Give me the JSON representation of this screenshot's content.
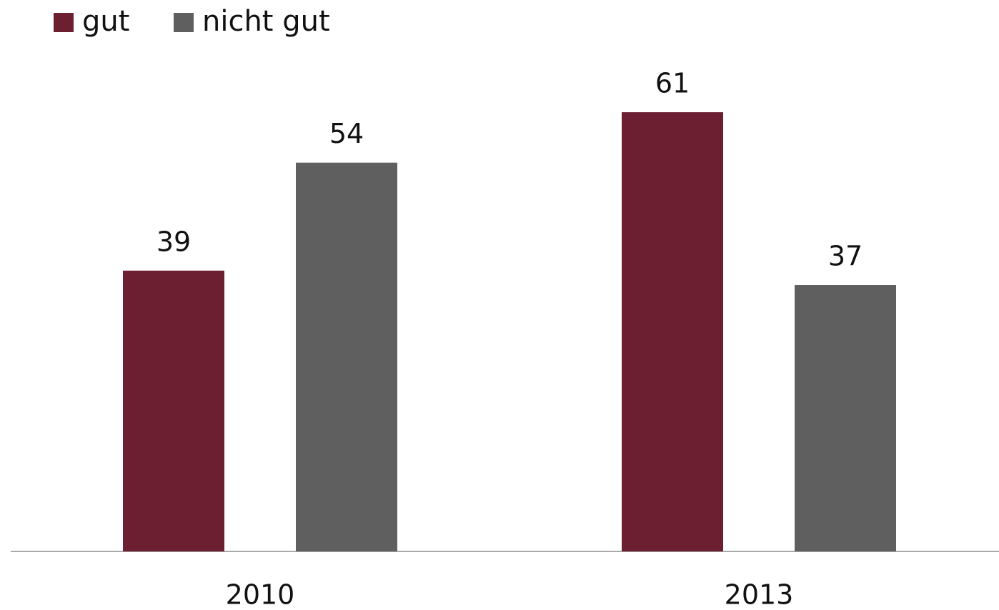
{
  "chart_data": {
    "type": "bar",
    "categories": [
      "2010",
      "2013"
    ],
    "series": [
      {
        "name": "gut",
        "color": "#6b1f31",
        "values": [
          39,
          61
        ]
      },
      {
        "name": "nicht gut",
        "color": "#5f5f5f",
        "values": [
          54,
          37
        ]
      }
    ],
    "legend": "top-left"
  }
}
